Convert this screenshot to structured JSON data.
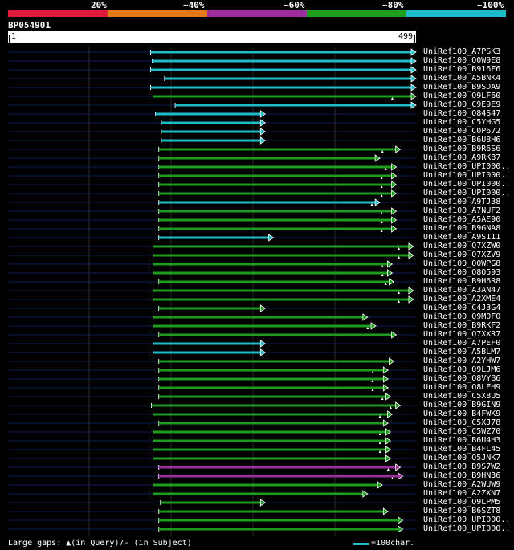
{
  "legend": {
    "buckets": [
      {
        "label": "20%",
        "color": "#e01b3c"
      },
      {
        "label": "~40%",
        "color": "#e07a1b"
      },
      {
        "label": "~60%",
        "color": "#9b2f9b"
      },
      {
        "label": "~80%",
        "color": "#1e9e1e"
      },
      {
        "label": "~100%",
        "color": "#1ebcc8"
      }
    ]
  },
  "query": {
    "id": "BP054901",
    "start_label": "1",
    "end_label": "499"
  },
  "footer": {
    "gaps_text": "Large gaps: ▲(in Query)/- (in Subject)",
    "scale_text": "=100char."
  },
  "chart_data": {
    "type": "alignment",
    "query_length": 499,
    "hits": [
      {
        "id": "UniRef100_A7PSK3",
        "start": 175,
        "end": 499,
        "color": "#1ebcc8",
        "gaps": []
      },
      {
        "id": "UniRef100_Q0W9E8",
        "start": 177,
        "end": 499,
        "color": "#1ebcc8",
        "gaps": []
      },
      {
        "id": "UniRef100_B916F6",
        "start": 175,
        "end": 499,
        "color": "#1ebcc8",
        "gaps": []
      },
      {
        "id": "UniRef100_A5BNK4",
        "start": 192,
        "end": 499,
        "color": "#1ebcc8",
        "gaps": []
      },
      {
        "id": "UniRef100_B9SDA9",
        "start": 175,
        "end": 499,
        "color": "#1ebcc8",
        "gaps": []
      },
      {
        "id": "UniRef100_Q9LF60",
        "start": 178,
        "end": 499,
        "color": "#1e9e1e",
        "gaps": [
          470
        ]
      },
      {
        "id": "UniRef100_C9E9E9",
        "start": 205,
        "end": 499,
        "color": "#1ebcc8",
        "gaps": []
      },
      {
        "id": "UniRef100_Q84S47",
        "start": 181,
        "end": 315,
        "color": "#1ebcc8",
        "gaps": []
      },
      {
        "id": "UniRef100_C5YHG5",
        "start": 188,
        "end": 315,
        "color": "#1ebcc8",
        "gaps": []
      },
      {
        "id": "UniRef100_C0P672",
        "start": 188,
        "end": 315,
        "color": "#1ebcc8",
        "gaps": []
      },
      {
        "id": "UniRef100_B6U8H6",
        "start": 188,
        "end": 315,
        "color": "#1ebcc8",
        "gaps": []
      },
      {
        "id": "UniRef100_B9R6S6",
        "start": 185,
        "end": 480,
        "color": "#1e9e1e",
        "gaps": [
          458
        ]
      },
      {
        "id": "UniRef100_A9RK87",
        "start": 185,
        "end": 455,
        "color": "#1e9e1e",
        "gaps": []
      },
      {
        "id": "UniRef100_UPI000..",
        "start": 185,
        "end": 475,
        "color": "#1e9e1e",
        "gaps": [
          462
        ]
      },
      {
        "id": "UniRef100_UPI000..",
        "start": 185,
        "end": 475,
        "color": "#1e9e1e",
        "gaps": [
          457
        ]
      },
      {
        "id": "UniRef100_UPI000..",
        "start": 185,
        "end": 475,
        "color": "#1e9e1e",
        "gaps": [
          457
        ]
      },
      {
        "id": "UniRef100_UPI000..",
        "start": 185,
        "end": 475,
        "color": "#1e9e1e",
        "gaps": [
          457
        ]
      },
      {
        "id": "UniRef100_A9TJ38",
        "start": 185,
        "end": 455,
        "color": "#1ebcc8",
        "gaps": [
          445
        ]
      },
      {
        "id": "UniRef100_A7NUF2",
        "start": 185,
        "end": 475,
        "color": "#1e9e1e",
        "gaps": [
          457
        ]
      },
      {
        "id": "UniRef100_A5AE90",
        "start": 185,
        "end": 475,
        "color": "#1e9e1e",
        "gaps": [
          457
        ]
      },
      {
        "id": "UniRef100_B9GNA8",
        "start": 185,
        "end": 475,
        "color": "#1e9e1e",
        "gaps": [
          457
        ]
      },
      {
        "id": "UniRef100_A9S111",
        "start": 185,
        "end": 325,
        "color": "#1ebcc8",
        "gaps": []
      },
      {
        "id": "UniRef100_Q7XZW0",
        "start": 178,
        "end": 496,
        "color": "#1e9e1e",
        "gaps": [
          478
        ]
      },
      {
        "id": "UniRef100_Q7XZV9",
        "start": 178,
        "end": 496,
        "color": "#1e9e1e",
        "gaps": [
          478
        ]
      },
      {
        "id": "UniRef100_Q0WPG8",
        "start": 178,
        "end": 470,
        "color": "#1e9e1e",
        "gaps": [
          458
        ]
      },
      {
        "id": "UniRef100_Q8Q593",
        "start": 178,
        "end": 470,
        "color": "#1e9e1e",
        "gaps": [
          458
        ]
      },
      {
        "id": "UniRef100_B9H6R8",
        "start": 185,
        "end": 472,
        "color": "#1e9e1e",
        "gaps": [
          462
        ]
      },
      {
        "id": "UniRef100_A3AN47",
        "start": 178,
        "end": 496,
        "color": "#1e9e1e",
        "gaps": [
          478
        ]
      },
      {
        "id": "UniRef100_A2XME4",
        "start": 178,
        "end": 496,
        "color": "#1e9e1e",
        "gaps": [
          478
        ]
      },
      {
        "id": "UniRef100_C4J3G4",
        "start": 185,
        "end": 315,
        "color": "#1e9e1e",
        "gaps": []
      },
      {
        "id": "UniRef100_Q9M0F0",
        "start": 178,
        "end": 440,
        "color": "#1e9e1e",
        "gaps": []
      },
      {
        "id": "UniRef100_B9RKF2",
        "start": 178,
        "end": 450,
        "color": "#1e9e1e",
        "gaps": [
          440
        ]
      },
      {
        "id": "UniRef100_Q7XXR7",
        "start": 185,
        "end": 475,
        "color": "#1e9e1e",
        "gaps": []
      },
      {
        "id": "UniRef100_A7PEF0",
        "start": 178,
        "end": 315,
        "color": "#1ebcc8",
        "gaps": []
      },
      {
        "id": "UniRef100_A5BLM7",
        "start": 178,
        "end": 315,
        "color": "#1ebcc8",
        "gaps": []
      },
      {
        "id": "UniRef100_A2YHW7",
        "start": 185,
        "end": 472,
        "color": "#1e9e1e",
        "gaps": []
      },
      {
        "id": "UniRef100_Q9LJM6",
        "start": 185,
        "end": 465,
        "color": "#1e9e1e",
        "gaps": [
          446
        ]
      },
      {
        "id": "UniRef100_Q8VYB6",
        "start": 185,
        "end": 465,
        "color": "#1e9e1e",
        "gaps": [
          446
        ]
      },
      {
        "id": "UniRef100_Q8LEH9",
        "start": 185,
        "end": 465,
        "color": "#1e9e1e",
        "gaps": [
          446
        ]
      },
      {
        "id": "UniRef100_C5X8U5",
        "start": 185,
        "end": 468,
        "color": "#1e9e1e",
        "gaps": [
          458
        ]
      },
      {
        "id": "UniRef100_B9GIN9",
        "start": 176,
        "end": 480,
        "color": "#1e9e1e",
        "gaps": [
          468
        ]
      },
      {
        "id": "UniRef100_B4FWK9",
        "start": 178,
        "end": 470,
        "color": "#1e9e1e",
        "gaps": [
          455
        ]
      },
      {
        "id": "UniRef100_C5XJ78",
        "start": 185,
        "end": 465,
        "color": "#1e9e1e",
        "gaps": []
      },
      {
        "id": "UniRef100_C5WZ70",
        "start": 178,
        "end": 468,
        "color": "#1e9e1e",
        "gaps": [
          455
        ]
      },
      {
        "id": "UniRef100_B6U4H3",
        "start": 178,
        "end": 468,
        "color": "#1e9e1e",
        "gaps": [
          455
        ]
      },
      {
        "id": "UniRef100_B4FL45",
        "start": 178,
        "end": 468,
        "color": "#1e9e1e",
        "gaps": [
          455
        ]
      },
      {
        "id": "UniRef100_Q5JNK7",
        "start": 178,
        "end": 468,
        "color": "#1e9e1e",
        "gaps": []
      },
      {
        "id": "UniRef100_B9S7W2",
        "start": 185,
        "end": 480,
        "color": "#9b2f9b",
        "gaps": [
          465
        ]
      },
      {
        "id": "UniRef100_B9HN36",
        "start": 185,
        "end": 483,
        "color": "#9b2f9b",
        "gaps": [
          470
        ]
      },
      {
        "id": "UniRef100_A2WUW9",
        "start": 178,
        "end": 458,
        "color": "#1e9e1e",
        "gaps": []
      },
      {
        "id": "UniRef100_A2ZXN7",
        "start": 178,
        "end": 440,
        "color": "#1e9e1e",
        "gaps": []
      },
      {
        "id": "UniRef100_Q9LPM5",
        "start": 187,
        "end": 315,
        "color": "#1e9e1e",
        "gaps": []
      },
      {
        "id": "UniRef100_B6SZT8",
        "start": 185,
        "end": 465,
        "color": "#1e9e1e",
        "gaps": []
      },
      {
        "id": "UniRef100_UPI000..",
        "start": 185,
        "end": 483,
        "color": "#1e9e1e",
        "gaps": []
      },
      {
        "id": "UniRef100_UPI000..",
        "start": 185,
        "end": 483,
        "color": "#1e9e1e",
        "gaps": []
      }
    ]
  }
}
